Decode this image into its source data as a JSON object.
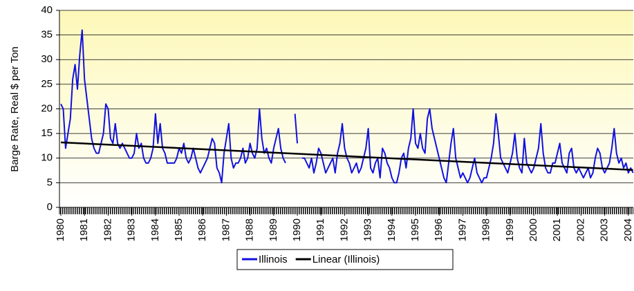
{
  "chart_data": {
    "type": "line",
    "y_label": "Barge Rate, Real $ per Ton",
    "x": [
      1980,
      1980.1,
      1980.2,
      1980.3,
      1980.4,
      1980.5,
      1980.6,
      1980.7,
      1980.8,
      1980.9,
      1981,
      1981.1,
      1981.2,
      1981.3,
      1981.4,
      1981.5,
      1981.6,
      1981.7,
      1981.8,
      1981.9,
      1982,
      1982.1,
      1982.2,
      1982.3,
      1982.4,
      1982.5,
      1982.6,
      1982.7,
      1982.8,
      1982.9,
      1983,
      1983.1,
      1983.2,
      1983.3,
      1983.4,
      1983.5,
      1983.6,
      1983.7,
      1983.8,
      1983.9,
      1984,
      1984.1,
      1984.2,
      1984.3,
      1984.4,
      1984.5,
      1984.6,
      1984.7,
      1984.8,
      1984.9,
      1985,
      1985.1,
      1985.2,
      1985.3,
      1985.4,
      1985.5,
      1985.6,
      1985.7,
      1985.8,
      1985.9,
      1986,
      1986.1,
      1986.2,
      1986.3,
      1986.4,
      1986.5,
      1986.6,
      1986.7,
      1986.8,
      1986.9,
      1987,
      1987.1,
      1987.2,
      1987.3,
      1987.4,
      1987.5,
      1987.6,
      1987.7,
      1987.8,
      1987.9,
      1988,
      1988.1,
      1988.2,
      1988.3,
      1988.4,
      1988.5,
      1988.6,
      1988.7,
      1988.8,
      1988.9,
      1989,
      1989.1,
      1989.2,
      1989.3,
      1989.4,
      1989.5,
      1989.6,
      1989.7,
      1989.8,
      1989.9,
      1990,
      1990.1,
      1990.2,
      1990.3,
      1990.4,
      1990.5,
      1990.6,
      1990.7,
      1990.8,
      1990.9,
      1991,
      1991.1,
      1991.2,
      1991.3,
      1991.4,
      1991.5,
      1991.6,
      1991.7,
      1991.8,
      1991.9,
      1992,
      1992.1,
      1992.2,
      1992.3,
      1992.4,
      1992.5,
      1992.6,
      1992.7,
      1992.8,
      1992.9,
      1993,
      1993.1,
      1993.2,
      1993.3,
      1993.4,
      1993.5,
      1993.6,
      1993.7,
      1993.8,
      1993.9,
      1994,
      1994.1,
      1994.2,
      1994.3,
      1994.4,
      1994.5,
      1994.6,
      1994.7,
      1994.8,
      1994.9,
      1995,
      1995.1,
      1995.2,
      1995.3,
      1995.4,
      1995.5,
      1995.6,
      1995.7,
      1995.8,
      1995.9,
      1996,
      1996.1,
      1996.2,
      1996.3,
      1996.4,
      1996.5,
      1996.6,
      1996.7,
      1996.8,
      1996.9,
      1997,
      1997.1,
      1997.2,
      1997.3,
      1997.4,
      1997.5,
      1997.6,
      1997.7,
      1997.8,
      1997.9,
      1998,
      1998.1,
      1998.2,
      1998.3,
      1998.4,
      1998.5,
      1998.6,
      1998.7,
      1998.8,
      1998.9,
      1999,
      1999.1,
      1999.2,
      1999.3,
      1999.4,
      1999.5,
      1999.6,
      1999.7,
      1999.8,
      1999.9,
      2000,
      2000.1,
      2000.2,
      2000.3,
      2000.4,
      2000.5,
      2000.6,
      2000.7,
      2000.8,
      2000.9,
      2001,
      2001.1,
      2001.2,
      2001.3,
      2001.4,
      2001.5,
      2001.6,
      2001.7,
      2001.8,
      2001.9,
      2002,
      2002.1,
      2002.2,
      2002.3,
      2002.4,
      2002.5,
      2002.6,
      2002.7,
      2002.8,
      2002.9,
      2003,
      2003.1,
      2003.2,
      2003.3,
      2003.4,
      2003.5,
      2003.6,
      2003.7,
      2003.8,
      2003.9,
      2004,
      2004.1,
      2004.2
    ],
    "series": [
      {
        "name": "Illinois",
        "color": "#1010e0",
        "values": [
          21,
          20,
          12,
          15,
          18,
          26,
          29,
          24,
          31,
          36,
          26,
          22,
          18,
          14,
          12,
          11,
          11,
          13,
          15,
          21,
          20,
          14,
          13,
          17,
          13,
          12,
          13,
          12,
          11,
          10,
          10,
          11,
          15,
          12,
          13,
          10,
          9,
          9,
          10,
          12,
          19,
          13,
          17,
          12,
          11,
          9,
          9,
          9,
          9,
          10,
          12,
          11,
          13,
          10,
          9,
          10,
          12,
          10,
          8,
          7,
          8,
          9,
          10,
          12,
          14,
          13,
          8,
          7,
          5,
          11,
          14,
          17,
          10,
          8,
          9,
          9,
          10,
          12,
          9,
          10,
          13,
          11,
          10,
          12,
          20,
          14,
          11,
          12,
          10,
          9,
          12,
          14,
          16,
          12,
          10,
          9,
          null,
          6,
          null,
          19,
          13,
          null,
          10,
          10,
          9,
          8,
          10,
          7,
          9,
          12,
          11,
          9,
          7,
          8,
          9,
          10,
          7,
          11,
          13,
          17,
          12,
          10,
          9,
          7,
          8,
          9,
          7,
          8,
          10,
          12,
          16,
          8,
          7,
          9,
          10,
          6,
          12,
          11,
          9,
          8,
          6,
          5,
          5,
          7,
          10,
          11,
          8,
          12,
          14,
          20,
          13,
          12,
          15,
          12,
          11,
          18,
          20,
          16,
          14,
          12,
          10,
          8,
          6,
          5,
          9,
          13,
          16,
          10,
          8,
          6,
          7,
          6,
          5,
          6,
          8,
          10,
          7,
          6,
          5,
          6,
          6,
          8,
          10,
          13,
          19,
          15,
          10,
          9,
          8,
          7,
          9,
          11,
          15,
          10,
          8,
          7,
          14,
          9,
          8,
          7,
          8,
          10,
          12,
          17,
          11,
          8,
          7,
          7,
          9,
          9,
          11,
          13,
          9,
          8,
          7,
          11,
          12,
          8,
          7,
          8,
          7,
          6,
          7,
          8,
          6,
          7,
          10,
          12,
          11,
          8,
          7,
          8,
          9,
          12,
          16,
          11,
          9,
          10,
          8,
          9,
          7,
          8,
          7
        ]
      },
      {
        "name": "Linear (Illinois)",
        "color": "#000000",
        "x": [
          1980,
          2004.2
        ],
        "values": [
          13.2,
          7.6
        ]
      }
    ],
    "xlim": [
      1979.94,
      2004.21
    ],
    "xticks": [
      1980,
      1981,
      1982,
      1983,
      1984,
      1985,
      1986,
      1987,
      1988,
      1989,
      1990,
      1991,
      1992,
      1993,
      1994,
      1995,
      1996,
      1997,
      1998,
      1999,
      2000,
      2001,
      2002,
      2003,
      2004
    ],
    "ylim": [
      0,
      40
    ],
    "yticks": [
      0,
      5,
      10,
      15,
      20,
      25,
      30,
      35,
      40
    ],
    "grid": true
  }
}
